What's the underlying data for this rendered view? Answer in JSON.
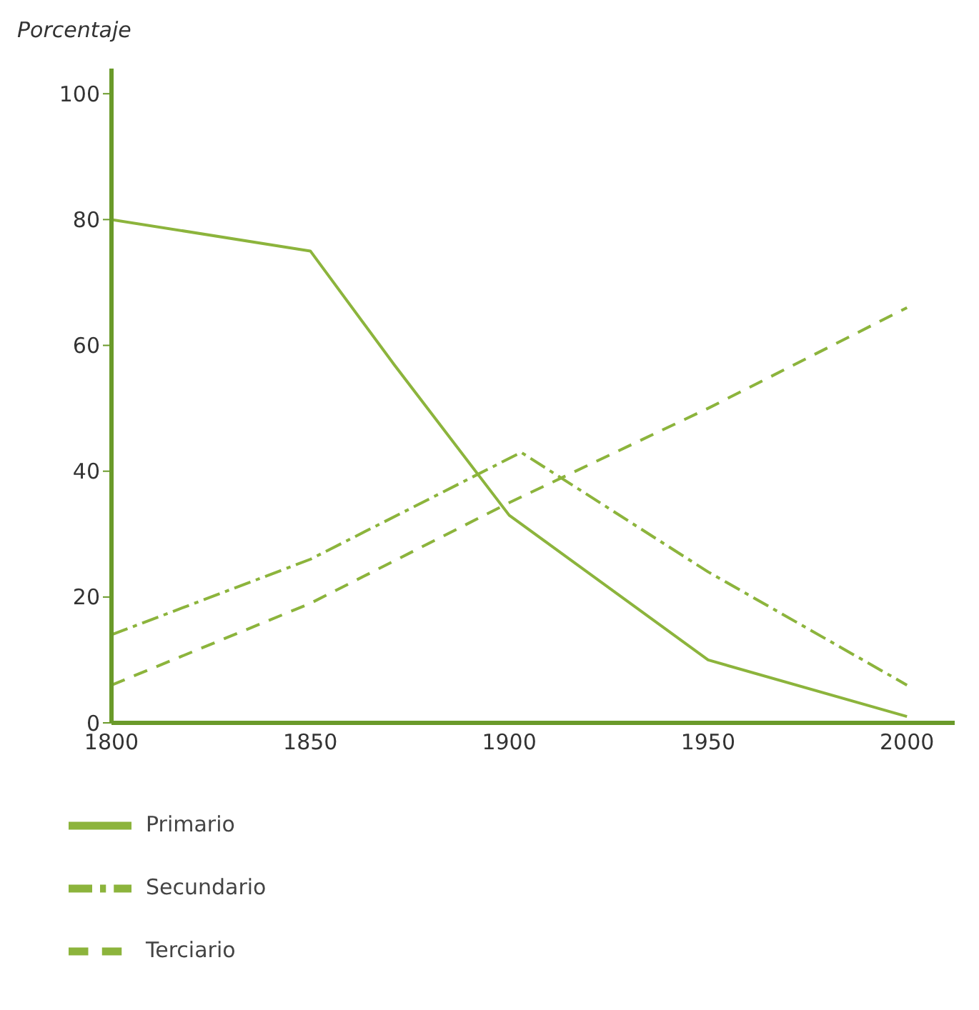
{
  "chart_data": {
    "type": "line",
    "ylabel": "Porcentaje",
    "xlim": [
      1800,
      2012
    ],
    "xticks": [
      1800,
      1850,
      1900,
      1950,
      2000
    ],
    "ylim": [
      0,
      104
    ],
    "yticks": [
      0,
      20,
      40,
      60,
      80,
      100
    ],
    "grid": false,
    "legend": "bottom left",
    "marker": "none",
    "series": [
      {
        "name": "Primario",
        "color": "#8cb43c",
        "line_style": "solid",
        "x": [
          1800,
          1850,
          1871,
          1900,
          1950,
          2000
        ],
        "values": [
          80,
          75,
          57,
          33,
          10,
          1
        ]
      },
      {
        "name": "Secundario",
        "color": "#8cb43c",
        "line_style": "dashdot",
        "x": [
          1800,
          1850,
          1903,
          1950,
          2000
        ],
        "values": [
          14,
          26,
          43,
          24,
          6
        ]
      },
      {
        "name": "Terciario",
        "color": "#8cb43c",
        "line_style": "dashed",
        "x": [
          1800,
          1850,
          1900,
          1950,
          2000
        ],
        "values": [
          6,
          19,
          35,
          50,
          66
        ]
      }
    ]
  }
}
